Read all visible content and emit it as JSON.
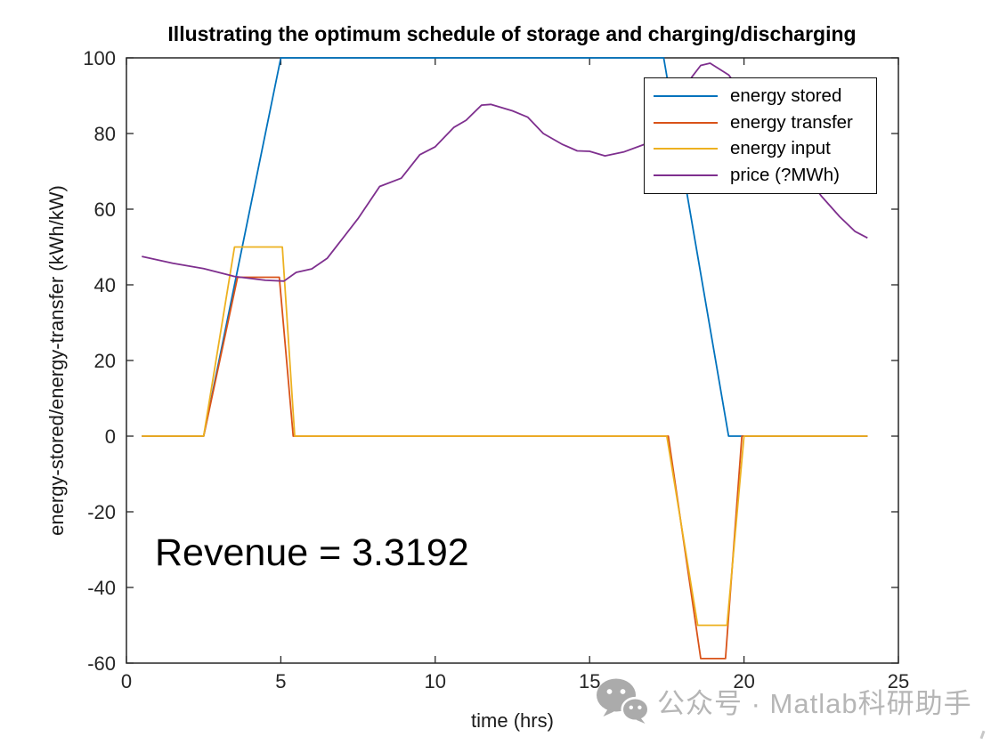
{
  "watermark": {
    "text": "公众号 · Matlab科研助手"
  },
  "chart_data": {
    "type": "line",
    "title": "Illustrating the optimum schedule of storage and charging/discharging",
    "xlabel": "time (hrs)",
    "ylabel": "energy-stored/energy-transfer (kWh/kW)",
    "xlim": [
      0,
      25
    ],
    "ylim": [
      -60,
      100
    ],
    "xticks": [
      0,
      5,
      10,
      15,
      20,
      25
    ],
    "yticks": [
      -60,
      -40,
      -20,
      0,
      20,
      40,
      60,
      80,
      100
    ],
    "grid": false,
    "axis_color": "#262626",
    "legend_position": "upper-right-inside",
    "series": [
      {
        "name": "energy stored",
        "color": "#0072BD",
        "points": [
          [
            0.5,
            0
          ],
          [
            2.5,
            0
          ],
          [
            5.0,
            100
          ],
          [
            17.4,
            100
          ],
          [
            19.5,
            0
          ],
          [
            24,
            0
          ]
        ]
      },
      {
        "name": "energy transfer",
        "color": "#D95319",
        "points": [
          [
            0.5,
            0
          ],
          [
            2.5,
            0
          ],
          [
            3.6,
            42
          ],
          [
            4.95,
            42
          ],
          [
            5.4,
            0
          ],
          [
            17.55,
            0
          ],
          [
            18.6,
            -58.8
          ],
          [
            19.4,
            -58.8
          ],
          [
            19.93,
            0
          ],
          [
            24,
            0
          ]
        ]
      },
      {
        "name": "energy input",
        "color": "#EDB120",
        "points": [
          [
            0.5,
            0
          ],
          [
            2.5,
            0
          ],
          [
            3.5,
            50
          ],
          [
            5.05,
            50
          ],
          [
            5.45,
            0
          ],
          [
            17.5,
            0
          ],
          [
            18.5,
            -50
          ],
          [
            19.45,
            -50
          ],
          [
            20.0,
            0
          ],
          [
            24,
            0
          ]
        ]
      },
      {
        "name": "price (?MWh)",
        "color": "#7E2F8E",
        "points": [
          [
            0.5,
            47.5
          ],
          [
            1.5,
            45.7
          ],
          [
            2.5,
            44.3
          ],
          [
            3.5,
            42.2
          ],
          [
            4.5,
            41.2
          ],
          [
            5.1,
            41.0
          ],
          [
            5.5,
            43.3
          ],
          [
            6.0,
            44.2
          ],
          [
            6.5,
            47.0
          ],
          [
            7.5,
            57.5
          ],
          [
            8.2,
            66.0
          ],
          [
            8.9,
            68.2
          ],
          [
            9.5,
            74.4
          ],
          [
            10.0,
            76.5
          ],
          [
            10.6,
            81.6
          ],
          [
            11.0,
            83.5
          ],
          [
            11.5,
            87.5
          ],
          [
            11.8,
            87.7
          ],
          [
            12.5,
            86.0
          ],
          [
            13.0,
            84.3
          ],
          [
            13.5,
            80.0
          ],
          [
            14.1,
            77.2
          ],
          [
            14.6,
            75.4
          ],
          [
            15.0,
            75.3
          ],
          [
            15.5,
            74.1
          ],
          [
            16.1,
            75.1
          ],
          [
            16.8,
            77.2
          ],
          [
            17.5,
            85.0
          ],
          [
            18.3,
            94.8
          ],
          [
            18.6,
            98.0
          ],
          [
            18.9,
            98.6
          ],
          [
            19.5,
            95.5
          ],
          [
            20.5,
            84.8
          ],
          [
            21.5,
            74.1
          ],
          [
            22.5,
            63.5
          ],
          [
            23.1,
            58.0
          ],
          [
            23.6,
            54.1
          ],
          [
            24.0,
            52.4
          ]
        ]
      }
    ],
    "annotations": [
      {
        "text": "Revenue = 3.3192",
        "x": 0.9,
        "y": -31
      }
    ]
  }
}
